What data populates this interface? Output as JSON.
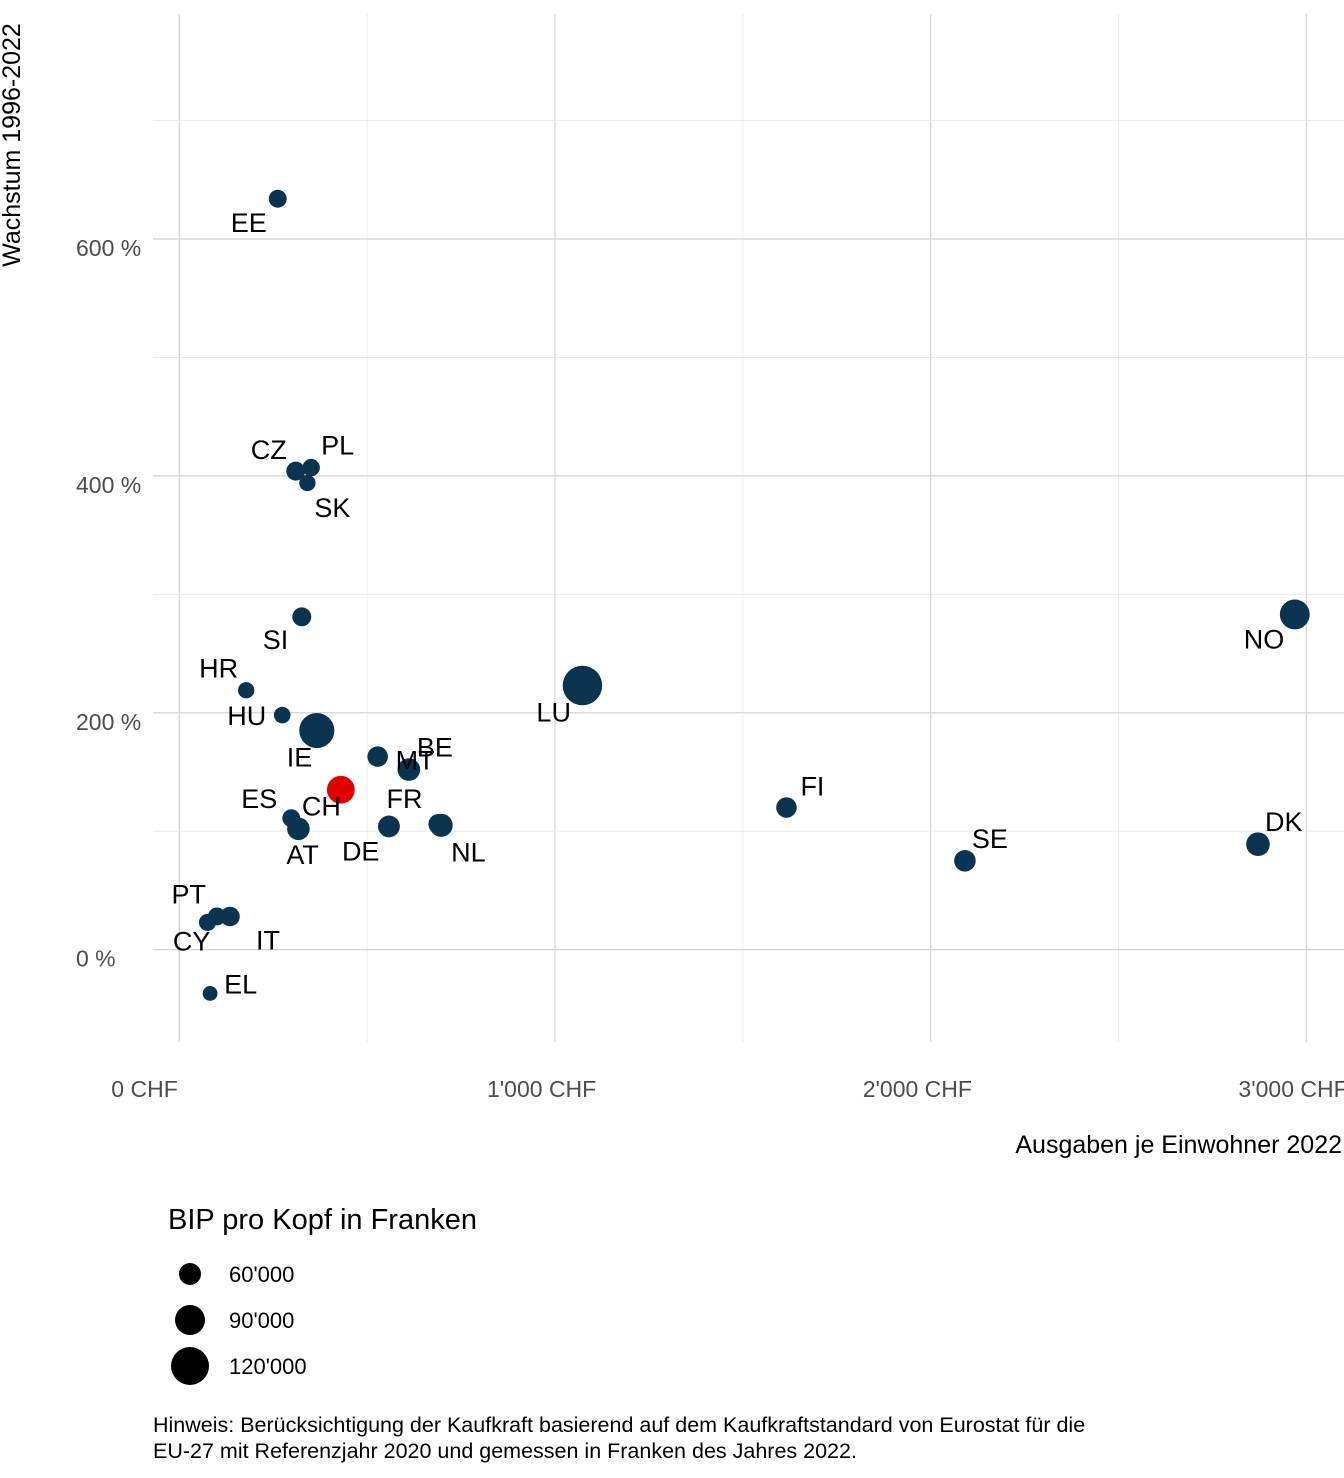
{
  "chart_data": {
    "type": "scatter",
    "title": "",
    "xlabel": "Ausgaben je Einwohner 2022",
    "ylabel": "Wachstum 1996-2022",
    "xlim": [
      -70,
      3100
    ],
    "ylim": [
      -78,
      790
    ],
    "x_ticks": [
      {
        "value": 0,
        "label": "0 CHF"
      },
      {
        "value": 1000,
        "label": "1'000 CHF"
      },
      {
        "value": 2000,
        "label": "2'000 CHF"
      },
      {
        "value": 3000,
        "label": "3'000 CHF"
      }
    ],
    "y_ticks": [
      {
        "value": 0,
        "label": "0 %"
      },
      {
        "value": 200,
        "label": "200 %"
      },
      {
        "value": 400,
        "label": "400 %"
      },
      {
        "value": 600,
        "label": "600 %"
      }
    ],
    "grid": true,
    "highlight_color": "#e00000",
    "point_color": "#0a3350",
    "size_legend": {
      "title": "BIP pro Kopf in Franken",
      "entries": [
        {
          "value": 60000,
          "label": "60'000"
        },
        {
          "value": 90000,
          "label": "90'000"
        },
        {
          "value": 120000,
          "label": "120'000"
        }
      ]
    },
    "points": [
      {
        "label": "EE",
        "x": 262,
        "y": 634,
        "bip": 42000
      },
      {
        "label": "CZ",
        "x": 310,
        "y": 404,
        "bip": 46000
      },
      {
        "label": "PL",
        "x": 351,
        "y": 407,
        "bip": 40000
      },
      {
        "label": "SK",
        "x": 341,
        "y": 394,
        "bip": 36000
      },
      {
        "label": "SI",
        "x": 326,
        "y": 281,
        "bip": 46000
      },
      {
        "label": "HR",
        "x": 178,
        "y": 219,
        "bip": 36000
      },
      {
        "label": "HU",
        "x": 274,
        "y": 198,
        "bip": 37000
      },
      {
        "label": "IE",
        "x": 366,
        "y": 185,
        "bip": 108000
      },
      {
        "label": "MT",
        "x": 528,
        "y": 163,
        "bip": 52000
      },
      {
        "label": "BE",
        "x": 611,
        "y": 152,
        "bip": 60000
      },
      {
        "label": "CH",
        "x": 430,
        "y": 135,
        "bip": 80000,
        "highlight": true
      },
      {
        "label": "ES",
        "x": 298,
        "y": 111,
        "bip": 42000
      },
      {
        "label": "AT",
        "x": 317,
        "y": 102,
        "bip": 60000
      },
      {
        "label": "DE",
        "x": 558,
        "y": 104,
        "bip": 57000
      },
      {
        "label": "FR",
        "x": 690,
        "y": 106,
        "bip": 51000
      },
      {
        "label": "NL",
        "x": 697,
        "y": 105,
        "bip": 62000
      },
      {
        "label": "LU",
        "x": 1073,
        "y": 223,
        "bip": 125000
      },
      {
        "label": "FI",
        "x": 1616,
        "y": 120,
        "bip": 52000
      },
      {
        "label": "SE",
        "x": 2091,
        "y": 75,
        "bip": 56000
      },
      {
        "label": "DK",
        "x": 2871,
        "y": 89,
        "bip": 64000
      },
      {
        "label": "NO",
        "x": 2969,
        "y": 283,
        "bip": 88000
      },
      {
        "label": "PT",
        "x": 75,
        "y": 23,
        "bip": 39000
      },
      {
        "label": "CY",
        "x": 100,
        "y": 28,
        "bip": 42000
      },
      {
        "label": "IT",
        "x": 135,
        "y": 28,
        "bip": 48000
      },
      {
        "label": "EL",
        "x": 82,
        "y": -37,
        "bip": 30000
      }
    ]
  },
  "note": {
    "line1": "Hinweis: Berücksichtigung der Kaufkraft basierend auf dem Kaufkraftstandard von Eurostat für die",
    "line2": "EU-27 mit Referenzjahr 2020 und gemessen in Franken des Jahres 2022."
  }
}
